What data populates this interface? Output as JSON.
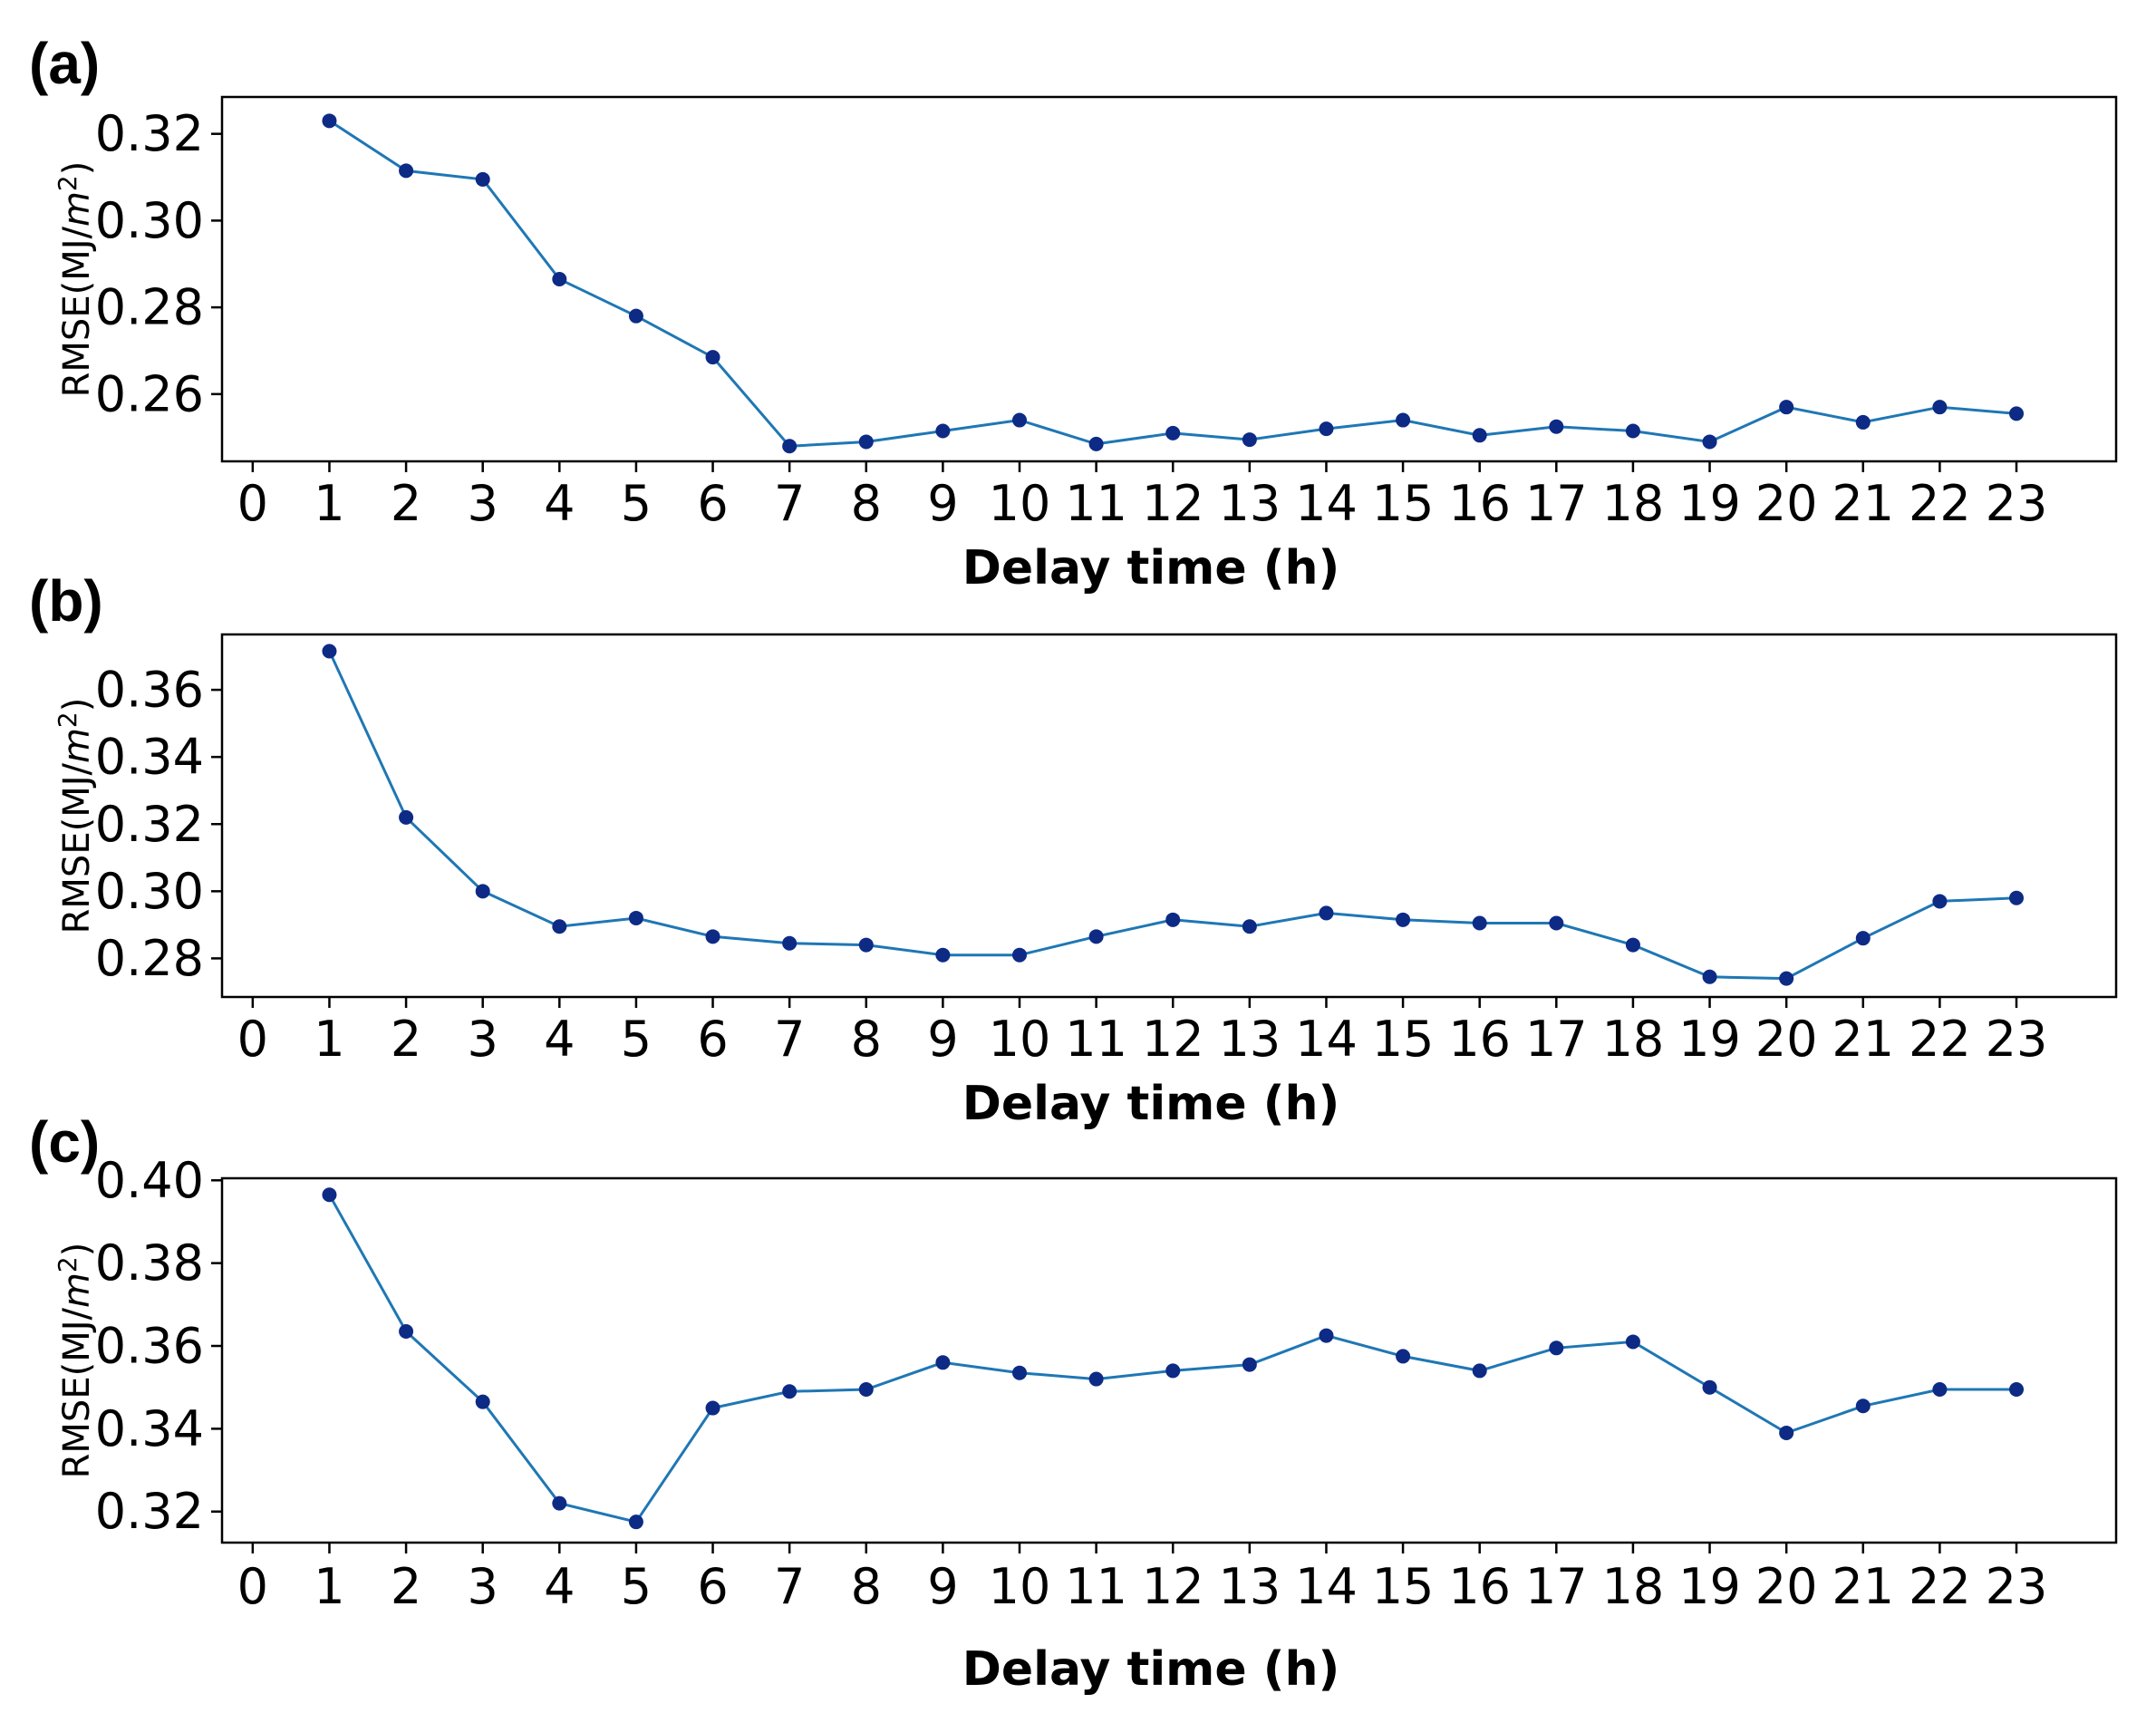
{
  "chart_data": [
    {
      "type": "line",
      "panel_label": "(a)",
      "xlabel": "Delay time (h)",
      "ylabel": "RMSE(MJ/m²)",
      "ylabel_base": "RMSE(MJ/",
      "ylabel_unit": "m",
      "ylabel_exp": "2",
      "ylabel_close": ")",
      "xlim": [
        -0.4,
        24.3
      ],
      "ylim": [
        0.2445,
        0.3285
      ],
      "xticks": [
        "0",
        "1",
        "2",
        "3",
        "4",
        "5",
        "6",
        "7",
        "8",
        "9",
        "10",
        "11",
        "12",
        "13",
        "14",
        "15",
        "16",
        "17",
        "18",
        "19",
        "20",
        "21",
        "22",
        "23"
      ],
      "yticks": [
        "0.26",
        "0.28",
        "0.30",
        "0.32"
      ],
      "ytick_values": [
        0.26,
        0.28,
        0.3,
        0.32
      ],
      "x": [
        1,
        2,
        3,
        4,
        5,
        6,
        7,
        8,
        9,
        10,
        11,
        12,
        13,
        14,
        15,
        16,
        17,
        18,
        19,
        20,
        21,
        22,
        23
      ],
      "values": [
        0.323,
        0.3115,
        0.3095,
        0.2865,
        0.278,
        0.2685,
        0.248,
        0.249,
        0.2515,
        0.254,
        0.2485,
        0.251,
        0.2495,
        0.252,
        0.254,
        0.2505,
        0.2525,
        0.2515,
        0.249,
        0.257,
        0.2535,
        0.257,
        0.2555
      ],
      "grid": false,
      "color": "#1f77b4",
      "marker_color": "#0d2a85"
    },
    {
      "type": "line",
      "panel_label": "(b)",
      "xlabel": "Delay time (h)",
      "ylabel": "RMSE(MJ/m²)",
      "ylabel_base": "RMSE(MJ/",
      "ylabel_unit": "m",
      "ylabel_exp": "2",
      "ylabel_close": ")",
      "xlim": [
        -0.4,
        24.3
      ],
      "ylim": [
        0.2685,
        0.3765
      ],
      "xticks": [
        "0",
        "1",
        "2",
        "3",
        "4",
        "5",
        "6",
        "7",
        "8",
        "9",
        "10",
        "11",
        "12",
        "13",
        "14",
        "15",
        "16",
        "17",
        "18",
        "19",
        "20",
        "21",
        "22",
        "23"
      ],
      "yticks": [
        "0.28",
        "0.30",
        "0.32",
        "0.34",
        "0.36"
      ],
      "ytick_values": [
        0.28,
        0.3,
        0.32,
        0.34,
        0.36
      ],
      "x": [
        1,
        2,
        3,
        4,
        5,
        6,
        7,
        8,
        9,
        10,
        11,
        12,
        13,
        14,
        15,
        16,
        17,
        18,
        19,
        20,
        21,
        22,
        23
      ],
      "values": [
        0.3715,
        0.322,
        0.3,
        0.2895,
        0.292,
        0.2865,
        0.2845,
        0.284,
        0.281,
        0.281,
        0.2865,
        0.2915,
        0.2895,
        0.2935,
        0.2915,
        0.2905,
        0.2905,
        0.284,
        0.2745,
        0.274,
        0.286,
        0.297,
        0.298
      ],
      "grid": false,
      "color": "#1f77b4",
      "marker_color": "#0d2a85"
    },
    {
      "type": "line",
      "panel_label": "(c)",
      "xlabel": "Delay time (h)",
      "ylabel": "RMSE(MJ/m²)",
      "ylabel_base": "RMSE(MJ/",
      "ylabel_unit": "m",
      "ylabel_exp": "2",
      "ylabel_close": ")",
      "xlim": [
        -0.4,
        24.3
      ],
      "ylim": [
        0.3125,
        0.4005
      ],
      "xticks": [
        "0",
        "1",
        "2",
        "3",
        "4",
        "5",
        "6",
        "7",
        "8",
        "9",
        "10",
        "11",
        "12",
        "13",
        "14",
        "15",
        "16",
        "17",
        "18",
        "19",
        "20",
        "21",
        "22",
        "23"
      ],
      "yticks": [
        "0.32",
        "0.34",
        "0.36",
        "0.38",
        "0.40"
      ],
      "ytick_values": [
        0.32,
        0.34,
        0.36,
        0.38,
        0.4
      ],
      "x": [
        1,
        2,
        3,
        4,
        5,
        6,
        7,
        8,
        9,
        10,
        11,
        12,
        13,
        14,
        15,
        16,
        17,
        18,
        19,
        20,
        21,
        22,
        23
      ],
      "values": [
        0.3965,
        0.3635,
        0.3465,
        0.322,
        0.3175,
        0.345,
        0.349,
        0.3495,
        0.356,
        0.3535,
        0.352,
        0.354,
        0.3555,
        0.3625,
        0.3575,
        0.354,
        0.3595,
        0.361,
        0.35,
        0.339,
        0.3455,
        0.3495,
        0.3495
      ],
      "grid": false,
      "color": "#1f77b4",
      "marker_color": "#0d2a85"
    }
  ]
}
